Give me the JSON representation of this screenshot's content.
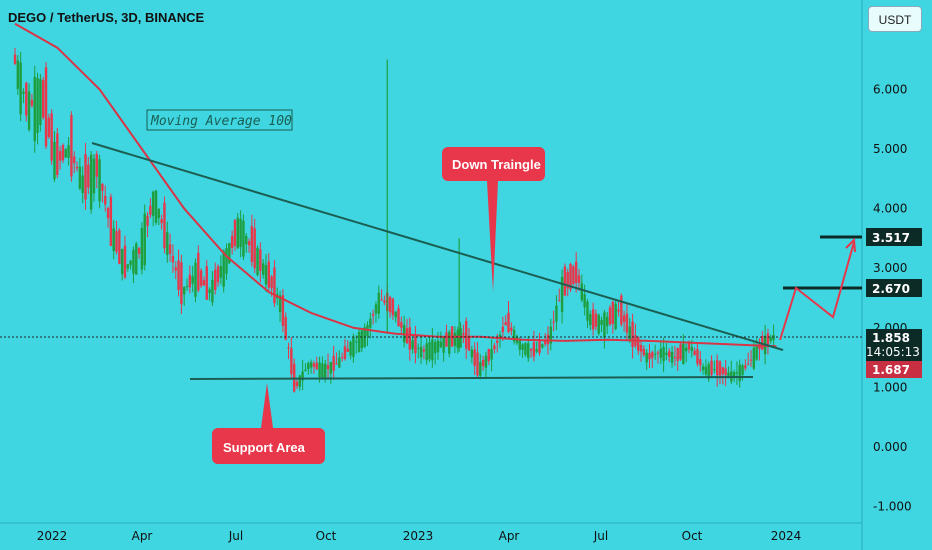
{
  "header": {
    "symbol": "DEGO / TetherUS, 3D, BINANCE",
    "currency_button": "USDT"
  },
  "chart_data": {
    "type": "candlestick",
    "y_axis": {
      "ticks": [
        "6.000",
        "5.000",
        "4.000",
        "3.000",
        "2.000",
        "1.000",
        "0.000",
        "-1.000"
      ],
      "ylim": [
        -1,
        6.6
      ]
    },
    "x_axis": {
      "ticks": [
        "2022",
        "Apr",
        "Jul",
        "Oct",
        "2023",
        "Apr",
        "Jul",
        "Oct",
        "2024"
      ]
    },
    "price_tags": {
      "current": "1.858",
      "countdown": "14:05:13",
      "ma": "1.687",
      "target1": "2.670",
      "target2": "3.517"
    },
    "annotations": {
      "ma_label": "Moving Average 100",
      "triangle_label": "Down Traingle",
      "support_label": "Support Area"
    },
    "series": [
      {
        "kind": "price",
        "points": [
          [
            0,
            6.6
          ],
          [
            1,
            5.7
          ],
          [
            2,
            5.9
          ],
          [
            3,
            4.8
          ],
          [
            4,
            5.0
          ],
          [
            5,
            4.4
          ],
          [
            6,
            4.7
          ],
          [
            7,
            3.6
          ],
          [
            8,
            3.0
          ],
          [
            9,
            3.3
          ],
          [
            10,
            4.2
          ],
          [
            11,
            3.4
          ],
          [
            12,
            2.6
          ],
          [
            13,
            2.9
          ],
          [
            14,
            2.6
          ],
          [
            15,
            3.1
          ],
          [
            16,
            3.7
          ],
          [
            17,
            3.3
          ],
          [
            18,
            2.9
          ],
          [
            19,
            2.4
          ],
          [
            20,
            1.0
          ],
          [
            21,
            1.4
          ],
          [
            22,
            1.3
          ],
          [
            23,
            1.4
          ],
          [
            24,
            1.7
          ],
          [
            25,
            1.9
          ],
          [
            26,
            2.5
          ],
          [
            27,
            2.3
          ],
          [
            28,
            1.8
          ],
          [
            29,
            1.6
          ],
          [
            30,
            1.7
          ],
          [
            31,
            1.8
          ],
          [
            32,
            1.9
          ],
          [
            33,
            1.3
          ],
          [
            34,
            1.6
          ],
          [
            35,
            2.1
          ],
          [
            36,
            1.7
          ],
          [
            37,
            1.6
          ],
          [
            38,
            1.8
          ],
          [
            39,
            2.7
          ],
          [
            40,
            2.9
          ],
          [
            41,
            2.1
          ],
          [
            42,
            2.1
          ],
          [
            43,
            2.3
          ],
          [
            44,
            1.8
          ],
          [
            45,
            1.5
          ],
          [
            46,
            1.6
          ],
          [
            47,
            1.5
          ],
          [
            48,
            1.7
          ],
          [
            49,
            1.3
          ],
          [
            50,
            1.3
          ],
          [
            51,
            1.2
          ],
          [
            52,
            1.35
          ],
          [
            53,
            1.7
          ],
          [
            54,
            1.86
          ]
        ]
      },
      {
        "kind": "ma100",
        "points": [
          [
            0,
            7.1
          ],
          [
            3,
            6.7
          ],
          [
            6,
            6.0
          ],
          [
            9,
            5.0
          ],
          [
            12,
            4.0
          ],
          [
            15,
            3.2
          ],
          [
            18,
            2.6
          ],
          [
            21,
            2.25
          ],
          [
            24,
            2.0
          ],
          [
            27,
            1.9
          ],
          [
            30,
            1.85
          ],
          [
            33,
            1.85
          ],
          [
            36,
            1.8
          ],
          [
            39,
            1.78
          ],
          [
            42,
            1.8
          ],
          [
            45,
            1.78
          ],
          [
            48,
            1.75
          ],
          [
            51,
            1.72
          ],
          [
            54,
            1.69
          ]
        ]
      }
    ]
  }
}
